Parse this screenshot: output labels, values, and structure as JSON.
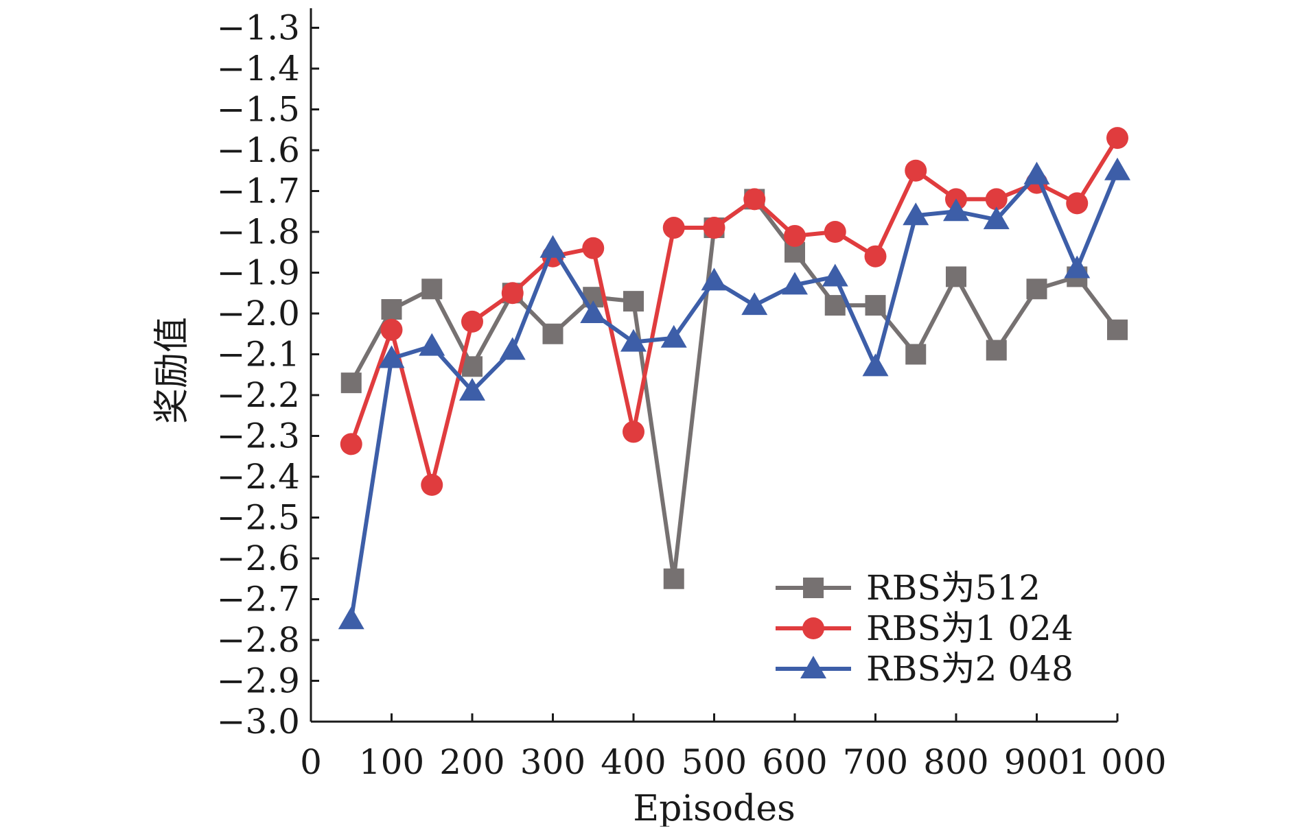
{
  "chart_data": {
    "type": "line",
    "xlabel": "Episodes",
    "ylabel": "奖励值",
    "xlim": [
      0,
      1000
    ],
    "ylim": [
      -3.0,
      -1.25
    ],
    "x_ticks": [
      0,
      100,
      200,
      300,
      400,
      500,
      600,
      700,
      800,
      900,
      1000
    ],
    "x_tick_labels": [
      "0",
      "100",
      "200",
      "300",
      "400",
      "500",
      "600",
      "700",
      "800",
      "900",
      "1 000"
    ],
    "y_ticks": [
      -3.0,
      -2.9,
      -2.8,
      -2.7,
      -2.6,
      -2.5,
      -2.4,
      -2.3,
      -2.2,
      -2.1,
      -2.0,
      -1.9,
      -1.8,
      -1.7,
      -1.6,
      -1.5,
      -1.4,
      -1.3
    ],
    "y_tick_labels": [
      "−3.0",
      "−2.9",
      "−2.8",
      "−2.7",
      "−2.6",
      "−2.5",
      "−2.4",
      "−2.3",
      "−2.2",
      "−2.1",
      "−2.0",
      "−1.9",
      "−1.8",
      "−1.7",
      "−1.6",
      "−1.5",
      "−1.4",
      "−1.3"
    ],
    "grid": false,
    "legend_position": "bottom-right",
    "x": [
      50,
      100,
      150,
      200,
      250,
      300,
      350,
      400,
      450,
      500,
      550,
      600,
      650,
      700,
      750,
      800,
      850,
      900,
      950,
      1000
    ],
    "series": [
      {
        "name": "RBS为512",
        "marker": "square",
        "color": "#767171",
        "values": [
          -2.17,
          -1.99,
          -1.94,
          -2.13,
          -1.95,
          -2.05,
          -1.96,
          -1.97,
          -2.65,
          -1.79,
          -1.72,
          -1.85,
          -1.98,
          -1.98,
          -2.1,
          -1.91,
          -2.09,
          -1.94,
          -1.91,
          -2.04
        ]
      },
      {
        "name": "RBS为1 024",
        "marker": "circle",
        "color": "#e03c3e",
        "values": [
          -2.32,
          -2.04,
          -2.42,
          -2.02,
          -1.95,
          -1.86,
          -1.84,
          -2.29,
          -1.79,
          -1.79,
          -1.72,
          -1.81,
          -1.8,
          -1.86,
          -1.65,
          -1.72,
          -1.72,
          -1.68,
          -1.73,
          -1.57
        ]
      },
      {
        "name": "RBS为2 048",
        "marker": "triangle",
        "color": "#3d5ea8",
        "values": [
          -2.75,
          -2.11,
          -2.08,
          -2.19,
          -2.09,
          -1.84,
          -2.0,
          -2.07,
          -2.06,
          -1.92,
          -1.98,
          -1.93,
          -1.91,
          -2.13,
          -1.76,
          -1.75,
          -1.77,
          -1.66,
          -1.89,
          -1.65
        ]
      }
    ]
  }
}
